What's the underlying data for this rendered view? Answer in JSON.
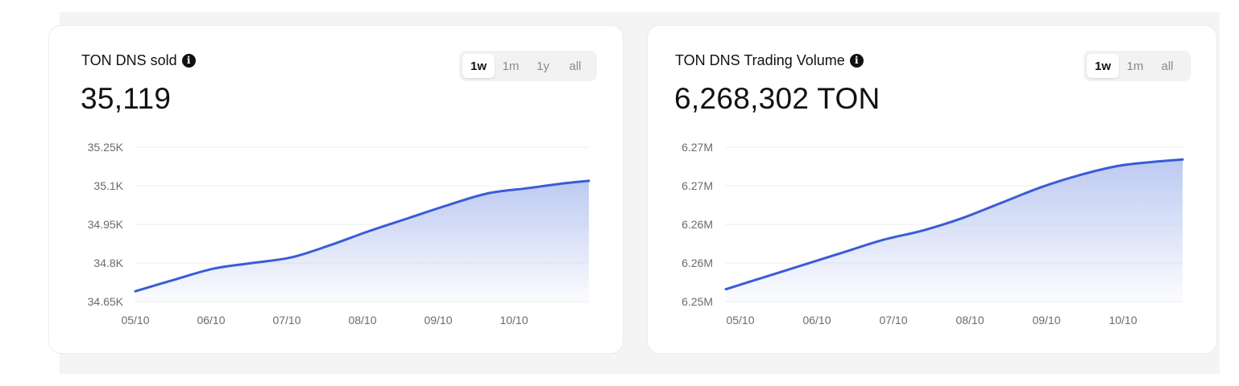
{
  "colors": {
    "line": "#3b5bd6",
    "fill_top": "#b9c7f1",
    "grid": "#eeeeee",
    "tick_text": "#6b6b6b",
    "active_tab_bg": "#ffffff",
    "tab_group_bg": "#f2f2f2"
  },
  "icons": {
    "info": "info-circle-icon"
  },
  "cards": [
    {
      "title": "TON DNS sold",
      "info_glyph": "i",
      "value": "35,119",
      "ranges": [
        {
          "label": "1w",
          "active": true
        },
        {
          "label": "1m",
          "active": false
        },
        {
          "label": "1y",
          "active": false
        },
        {
          "label": "all",
          "active": false
        }
      ]
    },
    {
      "title": "TON DNS Trading Volume",
      "info_glyph": "i",
      "value": "6,268,302 TON",
      "ranges": [
        {
          "label": "1w",
          "active": true
        },
        {
          "label": "1m",
          "active": false
        },
        {
          "label": "all",
          "active": false
        }
      ]
    }
  ],
  "chart_data": [
    {
      "type": "area",
      "title": "",
      "xlabel": "",
      "ylabel": "",
      "categories": [
        "05/10",
        "06/10",
        "07/10",
        "08/10",
        "09/10",
        "10/10"
      ],
      "x": [
        0,
        0.5,
        1,
        1.5,
        2,
        2.5,
        3,
        3.5,
        4,
        4.5,
        5,
        5.5,
        5.8
      ],
      "y": [
        34690,
        34735,
        34778,
        34800,
        34822,
        34870,
        34925,
        34975,
        35025,
        35070,
        35090,
        35110,
        35119
      ],
      "ylim": [
        34650,
        35250
      ],
      "yticks": [
        34650,
        34800,
        34950,
        35100,
        35250
      ],
      "ytick_labels": [
        "34.65K",
        "34.8K",
        "34.95K",
        "35.1K",
        "35.25K"
      ],
      "grid": true,
      "legend": "none"
    },
    {
      "type": "area",
      "title": "",
      "xlabel": "",
      "ylabel": "",
      "categories": [
        "05/10",
        "06/10",
        "07/10",
        "08/10",
        "09/10",
        "10/10"
      ],
      "x": [
        0,
        0.5,
        1,
        1.5,
        2,
        2.5,
        3,
        3.5,
        4,
        4.5,
        5,
        5.5,
        5.8
      ],
      "y": [
        6252000,
        6254000,
        6256000,
        6258000,
        6260000,
        6261500,
        6263500,
        6266000,
        6268500,
        6270500,
        6272000,
        6272700,
        6273000
      ],
      "ylim": [
        6250000,
        6275000
      ],
      "yticks": [
        6250000,
        6256250,
        6262500,
        6268750,
        6275000
      ],
      "ytick_labels": [
        "6.25M",
        "6.26M",
        "6.26M",
        "6.27M",
        "6.27M"
      ],
      "grid": true,
      "legend": "none"
    }
  ]
}
